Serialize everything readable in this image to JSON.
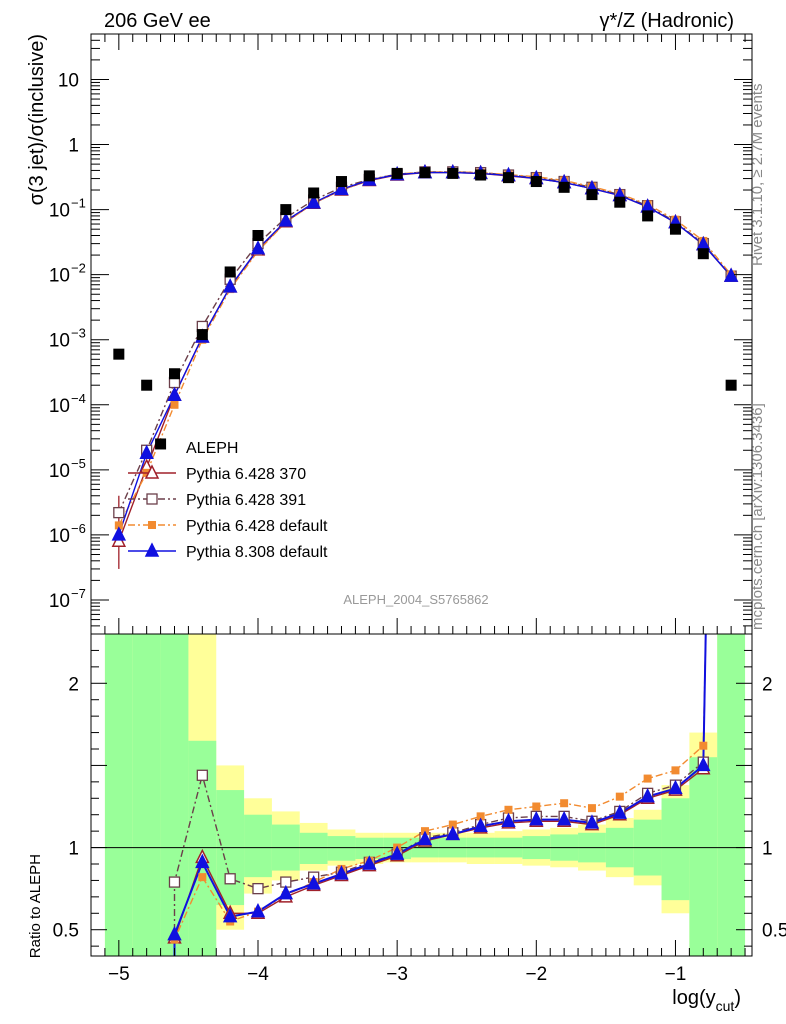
{
  "header": {
    "left": "206 GeV ee",
    "right": "γ*/Z (Hadronic)"
  },
  "side_text": {
    "rivet": "Rivet 3.1.10, ≥ 2.7M events",
    "mcplots": "mcplots.cern.ch [arXiv:1306.3436]"
  },
  "watermark": "ALEPH_2004_S5765862",
  "chart_data": [
    {
      "type": "scatter",
      "panel": "main",
      "ylabel": "σ(3 jet)/σ(inclusive)",
      "yscale": "log",
      "ylim": [
        3e-08,
        50
      ],
      "xlim": [
        -5.2,
        -0.45
      ],
      "y_ticks": [
        {
          "v": 10,
          "label": "10"
        },
        {
          "v": 1,
          "label": "1"
        },
        {
          "v": 0.1,
          "label": "10",
          "exp": "−1"
        },
        {
          "v": 0.01,
          "label": "10",
          "exp": "−2"
        },
        {
          "v": 0.001,
          "label": "10",
          "exp": "−3"
        },
        {
          "v": 0.0001,
          "label": "10",
          "exp": "−4"
        },
        {
          "v": 1e-05,
          "label": "10",
          "exp": "−5"
        },
        {
          "v": 1e-06,
          "label": "10",
          "exp": "−6"
        },
        {
          "v": 1e-07,
          "label": "10",
          "exp": "−7"
        }
      ],
      "legend_position": "center-left",
      "data": {
        "name": "ALEPH",
        "x": [
          -5.0,
          -4.8,
          -4.7,
          -4.6,
          -4.4,
          -4.2,
          -4.0,
          -3.8,
          -3.6,
          -3.4,
          -3.2,
          -3.0,
          -2.8,
          -2.6,
          -2.4,
          -2.2,
          -2.0,
          -1.8,
          -1.6,
          -1.4,
          -1.2,
          -1.0,
          -0.8,
          -0.6
        ],
        "y": [
          0.0006,
          0.0002,
          2.5e-05,
          0.0003,
          0.0012,
          0.011,
          0.04,
          0.1,
          0.18,
          0.27,
          0.33,
          0.36,
          0.37,
          0.36,
          0.34,
          0.31,
          0.27,
          0.22,
          0.17,
          0.13,
          0.08,
          0.05,
          0.021,
          0.0002
        ]
      },
      "series": [
        {
          "name": "Pythia 6.428 370",
          "color": "#a0202a",
          "marker": "triangle-open",
          "line": "solid",
          "x": [
            -5.0,
            -4.8,
            -4.6,
            -4.4,
            -4.2,
            -4.0,
            -3.8,
            -3.6,
            -3.4,
            -3.2,
            -3.0,
            -2.8,
            -2.6,
            -2.4,
            -2.2,
            -2.0,
            -1.8,
            -1.6,
            -1.4,
            -1.2,
            -1.0,
            -0.8,
            -0.6
          ],
          "y": [
            8e-07,
            1.1e-05,
            0.00014,
            0.0011,
            0.0065,
            0.024,
            0.065,
            0.125,
            0.2,
            0.28,
            0.34,
            0.37,
            0.37,
            0.36,
            0.33,
            0.3,
            0.26,
            0.21,
            0.165,
            0.11,
            0.063,
            0.029,
            0.0095
          ]
        },
        {
          "name": "Pythia 6.428 391",
          "color": "#6b3f4a",
          "marker": "square-open",
          "line": "dash-dot",
          "x": [
            -5.0,
            -4.8,
            -4.6,
            -4.4,
            -4.2,
            -4.0,
            -3.8,
            -3.6,
            -3.4,
            -3.2,
            -3.0,
            -2.8,
            -2.6,
            -2.4,
            -2.2,
            -2.0,
            -1.8,
            -1.6,
            -1.4,
            -1.2,
            -1.0,
            -0.8,
            -0.6
          ],
          "y": [
            2.2e-06,
            2e-05,
            0.00022,
            0.0016,
            0.0085,
            0.03,
            0.075,
            0.14,
            0.22,
            0.29,
            0.35,
            0.38,
            0.38,
            0.37,
            0.34,
            0.31,
            0.27,
            0.22,
            0.17,
            0.115,
            0.065,
            0.03,
            0.0095
          ]
        },
        {
          "name": "Pythia 6.428 default",
          "color": "#f28b30",
          "marker": "square-filled",
          "line": "dash-dot",
          "x": [
            -5.0,
            -4.8,
            -4.6,
            -4.4,
            -4.2,
            -4.0,
            -3.8,
            -3.6,
            -3.4,
            -3.2,
            -3.0,
            -2.8,
            -2.6,
            -2.4,
            -2.2,
            -2.0,
            -1.8,
            -1.6,
            -1.4,
            -1.2,
            -1.0,
            -0.8,
            -0.6
          ],
          "y": [
            1.4e-06,
            9e-06,
            0.0001,
            0.001,
            0.006,
            0.023,
            0.064,
            0.125,
            0.2,
            0.285,
            0.35,
            0.38,
            0.38,
            0.37,
            0.345,
            0.32,
            0.28,
            0.225,
            0.175,
            0.12,
            0.07,
            0.033,
            0.01
          ]
        },
        {
          "name": "Pythia 8.308 default",
          "color": "#1010e0",
          "marker": "triangle-filled",
          "line": "solid",
          "x": [
            -5.0,
            -4.8,
            -4.6,
            -4.4,
            -4.2,
            -4.0,
            -3.8,
            -3.6,
            -3.4,
            -3.2,
            -3.0,
            -2.8,
            -2.6,
            -2.4,
            -2.2,
            -2.0,
            -1.8,
            -1.6,
            -1.4,
            -1.2,
            -1.0,
            -0.8,
            -0.6
          ],
          "y": [
            1e-06,
            1.8e-05,
            0.00014,
            0.0011,
            0.0065,
            0.025,
            0.067,
            0.127,
            0.205,
            0.285,
            0.345,
            0.37,
            0.37,
            0.36,
            0.335,
            0.3,
            0.26,
            0.21,
            0.165,
            0.11,
            0.063,
            0.029,
            0.0095
          ]
        }
      ]
    },
    {
      "type": "line",
      "panel": "ratio",
      "ylabel": "Ratio to ALEPH",
      "xlabel": "log(y_cut)",
      "xlabel_main": "log(y",
      "xlabel_sub": "cut",
      "xlabel_close": ")",
      "ylim": [
        0.34,
        2.3
      ],
      "xlim": [
        -5.2,
        -0.45
      ],
      "x_ticks": [
        {
          "v": -5,
          "label": "−5"
        },
        {
          "v": -4,
          "label": "−4"
        },
        {
          "v": -3,
          "label": "−3"
        },
        {
          "v": -2,
          "label": "−2"
        },
        {
          "v": -1,
          "label": "−1"
        }
      ],
      "y_ticks": [
        {
          "v": 0.5,
          "label": "0.5"
        },
        {
          "v": 1,
          "label": "1"
        },
        {
          "v": 2,
          "label": "2"
        }
      ],
      "band_bins": [
        {
          "x0": -5.1,
          "x1": -4.9,
          "g": [
            0.3,
            2.4
          ],
          "y": [
            0.3,
            2.4
          ]
        },
        {
          "x0": -4.9,
          "x1": -4.7,
          "g": [
            0.3,
            2.4
          ],
          "y": [
            0.3,
            2.4
          ]
        },
        {
          "x0": -4.7,
          "x1": -4.5,
          "g": [
            0.3,
            2.4
          ],
          "y": [
            0.3,
            2.4
          ]
        },
        {
          "x0": -4.5,
          "x1": -4.3,
          "g": [
            0.3,
            1.65
          ],
          "y": [
            0.3,
            2.4
          ]
        },
        {
          "x0": -4.3,
          "x1": -4.1,
          "g": [
            0.65,
            1.35
          ],
          "y": [
            0.5,
            1.5
          ]
        },
        {
          "x0": -4.1,
          "x1": -3.9,
          "g": [
            0.82,
            1.2
          ],
          "y": [
            0.72,
            1.3
          ]
        },
        {
          "x0": -3.9,
          "x1": -3.7,
          "g": [
            0.86,
            1.14
          ],
          "y": [
            0.8,
            1.22
          ]
        },
        {
          "x0": -3.7,
          "x1": -3.5,
          "g": [
            0.9,
            1.09
          ],
          "y": [
            0.86,
            1.15
          ]
        },
        {
          "x0": -3.5,
          "x1": -3.3,
          "g": [
            0.92,
            1.07
          ],
          "y": [
            0.89,
            1.11
          ]
        },
        {
          "x0": -3.3,
          "x1": -3.1,
          "g": [
            0.93,
            1.06
          ],
          "y": [
            0.9,
            1.09
          ]
        },
        {
          "x0": -3.1,
          "x1": -2.9,
          "g": [
            0.93,
            1.06
          ],
          "y": [
            0.91,
            1.09
          ]
        },
        {
          "x0": -2.9,
          "x1": -2.7,
          "g": [
            0.94,
            1.06
          ],
          "y": [
            0.91,
            1.09
          ]
        },
        {
          "x0": -2.7,
          "x1": -2.5,
          "g": [
            0.94,
            1.06
          ],
          "y": [
            0.91,
            1.09
          ]
        },
        {
          "x0": -2.5,
          "x1": -2.3,
          "g": [
            0.94,
            1.06
          ],
          "y": [
            0.9,
            1.09
          ]
        },
        {
          "x0": -2.3,
          "x1": -2.1,
          "g": [
            0.94,
            1.06
          ],
          "y": [
            0.9,
            1.1
          ]
        },
        {
          "x0": -2.1,
          "x1": -1.9,
          "g": [
            0.93,
            1.07
          ],
          "y": [
            0.89,
            1.11
          ]
        },
        {
          "x0": -1.9,
          "x1": -1.7,
          "g": [
            0.92,
            1.08
          ],
          "y": [
            0.88,
            1.12
          ]
        },
        {
          "x0": -1.7,
          "x1": -1.5,
          "g": [
            0.91,
            1.09
          ],
          "y": [
            0.86,
            1.14
          ]
        },
        {
          "x0": -1.5,
          "x1": -1.3,
          "g": [
            0.88,
            1.12
          ],
          "y": [
            0.82,
            1.18
          ]
        },
        {
          "x0": -1.3,
          "x1": -1.1,
          "g": [
            0.83,
            1.17
          ],
          "y": [
            0.77,
            1.23
          ]
        },
        {
          "x0": -1.1,
          "x1": -0.9,
          "g": [
            0.68,
            1.3
          ],
          "y": [
            0.6,
            1.38
          ]
        },
        {
          "x0": -0.9,
          "x1": -0.7,
          "g": [
            0.3,
            1.55
          ],
          "y": [
            0.3,
            1.7
          ]
        },
        {
          "x0": -0.7,
          "x1": -0.5,
          "g": [
            0.3,
            2.4
          ],
          "y": [
            0.3,
            2.4
          ]
        }
      ],
      "series": [
        {
          "name": "Pythia 6.428 370",
          "x": [
            -4.6,
            -4.4,
            -4.2,
            -4.0,
            -3.8,
            -3.6,
            -3.4,
            -3.2,
            -3.0,
            -2.8,
            -2.6,
            -2.4,
            -2.2,
            -2.0,
            -1.8,
            -1.6,
            -1.4,
            -1.2,
            -1.0,
            -0.8
          ],
          "y": [
            0.45,
            0.94,
            0.6,
            0.6,
            0.7,
            0.77,
            0.83,
            0.89,
            0.95,
            1.04,
            1.08,
            1.12,
            1.15,
            1.16,
            1.16,
            1.14,
            1.2,
            1.3,
            1.35,
            1.48
          ]
        },
        {
          "name": "Pythia 6.428 391",
          "x": [
            -4.6,
            -4.4,
            -4.2,
            -4.0,
            -3.8,
            -3.6,
            -3.4,
            -3.2,
            -3.0,
            -2.8,
            -2.6,
            -2.4,
            -2.2,
            -2.0,
            -1.8,
            -1.6,
            -1.4,
            -1.2,
            -1.0,
            -0.8
          ],
          "y": [
            0.79,
            1.44,
            0.81,
            0.75,
            0.79,
            0.82,
            0.85,
            0.91,
            0.96,
            1.06,
            1.09,
            1.14,
            1.18,
            1.19,
            1.19,
            1.16,
            1.22,
            1.33,
            1.38,
            1.52
          ]
        },
        {
          "name": "Pythia 6.428 default",
          "x": [
            -4.6,
            -4.4,
            -4.2,
            -4.0,
            -3.8,
            -3.6,
            -3.4,
            -3.2,
            -3.0,
            -2.8,
            -2.6,
            -2.4,
            -2.2,
            -2.0,
            -1.8,
            -1.6,
            -1.4,
            -1.2,
            -1.0,
            -0.8
          ],
          "y": [
            0.44,
            0.82,
            0.55,
            0.61,
            0.71,
            0.79,
            0.87,
            0.92,
            1.0,
            1.1,
            1.14,
            1.19,
            1.23,
            1.25,
            1.27,
            1.24,
            1.31,
            1.42,
            1.47,
            1.62
          ]
        },
        {
          "name": "Pythia 8.308 default",
          "x": [
            -4.6,
            -4.4,
            -4.2,
            -4.0,
            -3.8,
            -3.6,
            -3.4,
            -3.2,
            -3.0,
            -2.8,
            -2.6,
            -2.4,
            -2.2,
            -2.0,
            -1.8,
            -1.6,
            -1.4,
            -1.2,
            -1.0,
            -0.8
          ],
          "y": [
            0.47,
            0.91,
            0.58,
            0.61,
            0.72,
            0.78,
            0.84,
            0.9,
            0.96,
            1.05,
            1.08,
            1.13,
            1.16,
            1.17,
            1.17,
            1.15,
            1.21,
            1.31,
            1.36,
            1.5
          ]
        }
      ]
    }
  ]
}
